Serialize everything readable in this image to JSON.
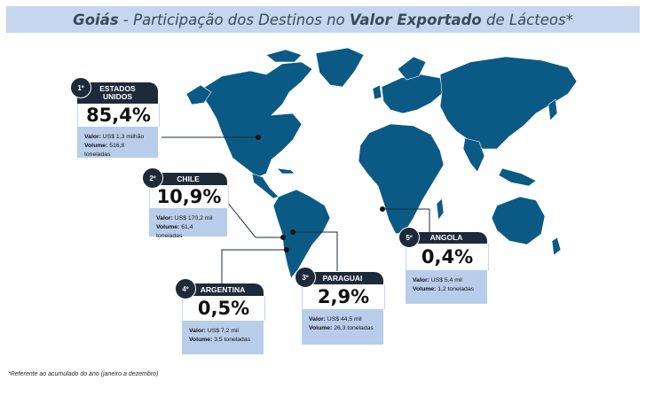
{
  "header": {
    "title_bold": "Goiás",
    "title_mid": " - Participação dos Destinos no ",
    "title_bold2": "Valor Exportado",
    "title_end": " de Lácteos*"
  },
  "colors": {
    "land": "#0b5a85",
    "card_dark": "#1d2a3a",
    "card_light": "#b8cdea",
    "header_bg": "#c5d7ee"
  },
  "destinations": [
    {
      "rank": "1º",
      "country": "ESTADOS UNIDOS",
      "percent": "85,4%",
      "valor_label": "Valor:",
      "valor": "US$ 1,3 milhão",
      "volume_label": "Volume:",
      "volume": "516,8 toneladas"
    },
    {
      "rank": "2º",
      "country": "CHILE",
      "percent": "10,9%",
      "valor_label": "Valor:",
      "valor": "US$ 170,2 mil",
      "volume_label": "Volume:",
      "volume": "61,4 toneladas"
    },
    {
      "rank": "3º",
      "country": "PARAGUAI",
      "percent": "2,9%",
      "valor_label": "Valor:",
      "valor": "US$ 44,5 mil",
      "volume_label": "Volume:",
      "volume": "26,3 toneladas"
    },
    {
      "rank": "4º",
      "country": "ARGENTINA",
      "percent": "0,5%",
      "valor_label": "Valor:",
      "valor": "US$ 7,2 mil",
      "volume_label": "Volume:",
      "volume": "3,5 toneladas"
    },
    {
      "rank": "5º",
      "country": "ANGOLA",
      "percent": "0,4%",
      "valor_label": "Valor:",
      "valor": "US$ 5,4 mil",
      "volume_label": "Volume:",
      "volume": "1,2 toneladas"
    }
  ],
  "footnote": "*Referente ao acumulado do ano (janeiro a dezembro)"
}
